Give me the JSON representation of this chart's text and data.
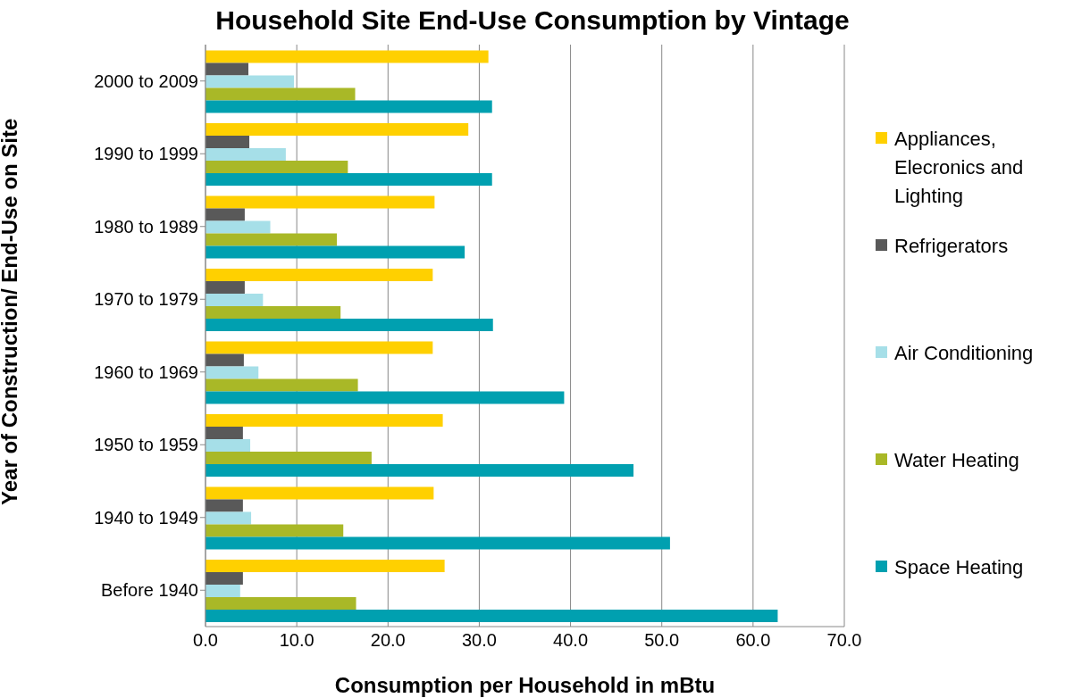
{
  "chart_data": {
    "type": "bar",
    "orientation": "horizontal",
    "title": "Household Site End-Use Consumption by Vintage",
    "xlabel": "Consumption per Household in mBtu",
    "ylabel": "Year of Construction/ End-Use on Site",
    "categories": [
      "2000 to 2009",
      "1990 to 1999",
      "1980 to 1989",
      "1970 to 1979",
      "1960 to 1969",
      "1950 to 1959",
      "1940 to 1949",
      "Before 1940"
    ],
    "series": [
      {
        "name": "Appliances, Elecronics and Lighting",
        "color": "#ffd000",
        "values": [
          31.0,
          28.8,
          25.1,
          24.9,
          24.9,
          26.0,
          25.0,
          26.2
        ]
      },
      {
        "name": "Refrigerators",
        "color": "#595959",
        "values": [
          4.7,
          4.8,
          4.3,
          4.3,
          4.2,
          4.1,
          4.1,
          4.1
        ]
      },
      {
        "name": "Air Conditioning",
        "color": "#a6dfe8",
        "values": [
          9.7,
          8.8,
          7.1,
          6.3,
          5.8,
          4.9,
          5.0,
          3.8
        ]
      },
      {
        "name": "Water Heating",
        "color": "#a9b827",
        "values": [
          16.4,
          15.6,
          14.4,
          14.8,
          16.7,
          18.2,
          15.1,
          16.5
        ]
      },
      {
        "name": "Space Heating",
        "color": "#00a0b0",
        "values": [
          31.4,
          31.4,
          28.4,
          31.5,
          39.3,
          46.9,
          50.9,
          62.7
        ]
      }
    ],
    "xlim": [
      0,
      70
    ],
    "xticks": [
      {
        "value": 0,
        "label": "0.0"
      },
      {
        "value": 10,
        "label": "10.0"
      },
      {
        "value": 20,
        "label": "20.0"
      },
      {
        "value": 30,
        "label": "30.0"
      },
      {
        "value": 40,
        "label": "40.0"
      },
      {
        "value": 50,
        "label": "50.0"
      },
      {
        "value": 60,
        "label": "60.0"
      },
      {
        "value": 70,
        "label": "70.0"
      }
    ],
    "grid": "x",
    "legend": "right"
  }
}
